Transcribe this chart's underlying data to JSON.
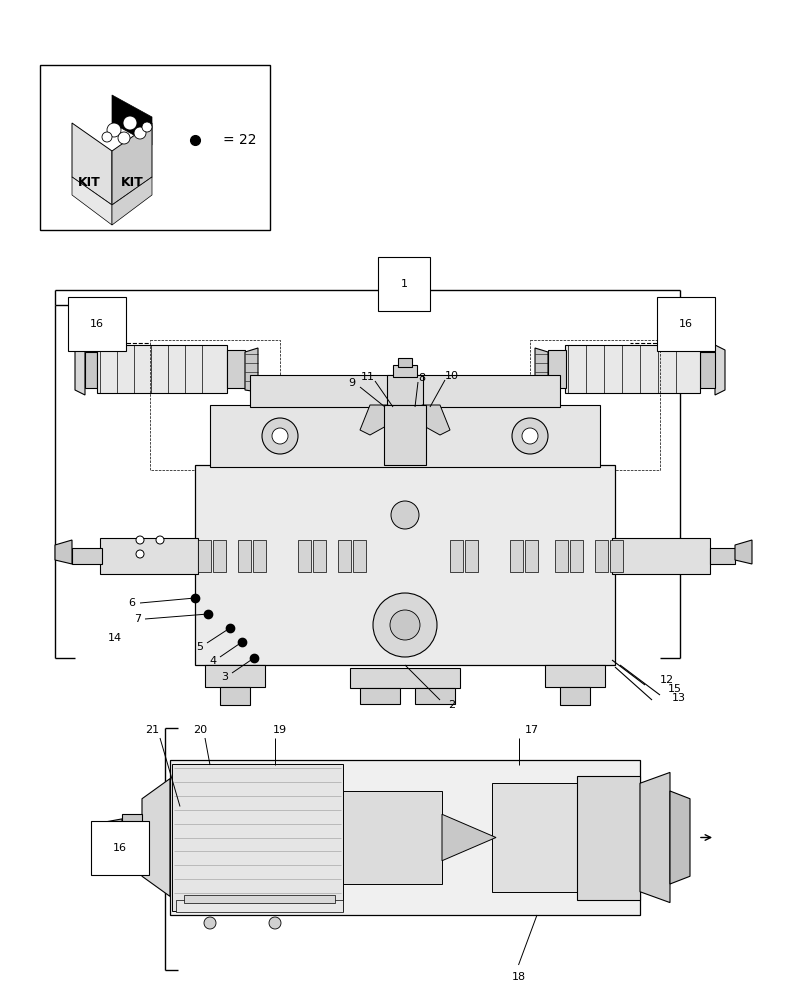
{
  "bg": "#ffffff",
  "lc": "#000000",
  "g1": "#e8e8e8",
  "g2": "#d0d0d0",
  "g3": "#c0c0c0",
  "g4": "#b0b0b0",
  "g5": "#f4f4f4",
  "figw": 8.08,
  "figh": 10.0,
  "dpi": 100
}
